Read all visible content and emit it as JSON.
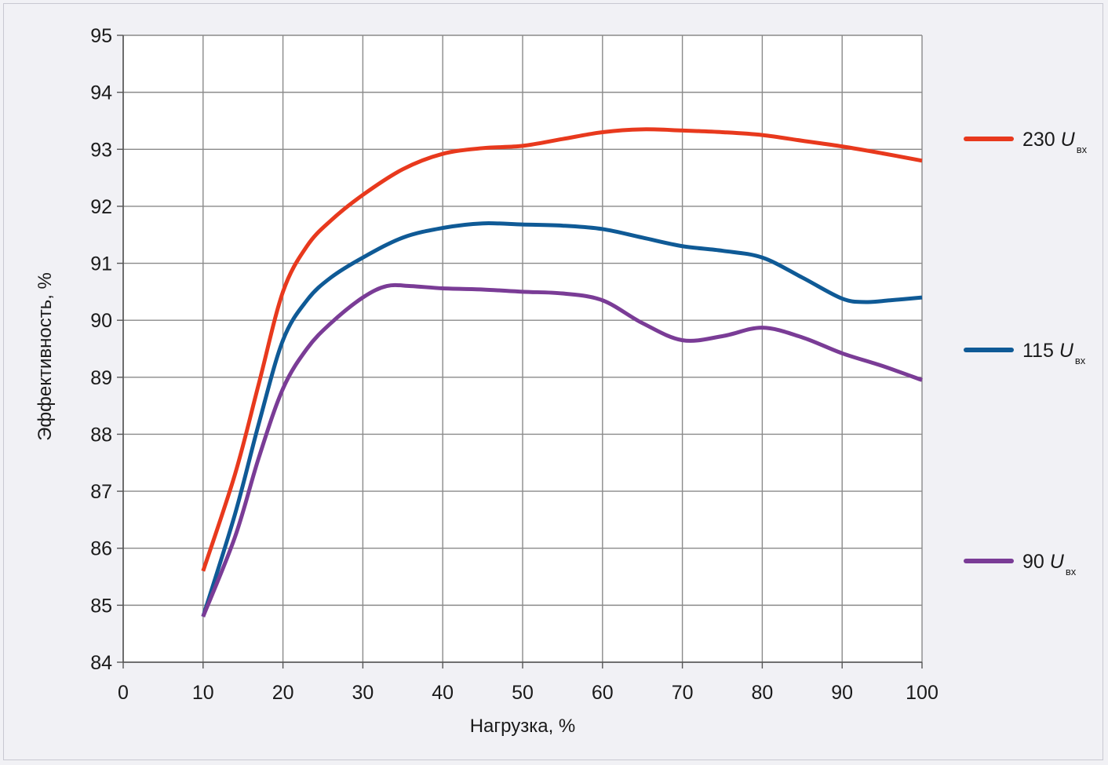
{
  "chart_data": {
    "type": "line",
    "xlabel": "Нагрузка, %",
    "ylabel": "Эффективность, %",
    "xlim": [
      0,
      100
    ],
    "ylim": [
      84,
      95
    ],
    "xticks": [
      "0",
      "10",
      "20",
      "30",
      "40",
      "50",
      "60",
      "70",
      "80",
      "90",
      "100"
    ],
    "yticks": [
      "84",
      "85",
      "86",
      "87",
      "88",
      "89",
      "90",
      "91",
      "92",
      "93",
      "94",
      "95"
    ],
    "grid": true,
    "legend_position": "right",
    "series": [
      {
        "name": "230 U",
        "name_parts": {
          "value": "230",
          "symbol": "U",
          "subscript": "вх"
        },
        "color": "#e8391d",
        "points": [
          [
            10,
            85.6
          ],
          [
            14,
            87.3
          ],
          [
            17,
            88.9
          ],
          [
            20,
            90.5
          ],
          [
            23,
            91.3
          ],
          [
            26,
            91.75
          ],
          [
            30,
            92.2
          ],
          [
            35,
            92.65
          ],
          [
            40,
            92.92
          ],
          [
            45,
            93.02
          ],
          [
            50,
            93.06
          ],
          [
            55,
            93.18
          ],
          [
            60,
            93.3
          ],
          [
            65,
            93.35
          ],
          [
            70,
            93.33
          ],
          [
            75,
            93.3
          ],
          [
            80,
            93.25
          ],
          [
            85,
            93.15
          ],
          [
            90,
            93.05
          ],
          [
            95,
            92.93
          ],
          [
            100,
            92.8
          ]
        ]
      },
      {
        "name": "115 U",
        "name_parts": {
          "value": "115",
          "symbol": "U",
          "subscript": "вх"
        },
        "color": "#0f5a96",
        "points": [
          [
            10,
            84.8
          ],
          [
            14,
            86.6
          ],
          [
            17,
            88.2
          ],
          [
            20,
            89.65
          ],
          [
            23,
            90.35
          ],
          [
            26,
            90.75
          ],
          [
            30,
            91.1
          ],
          [
            35,
            91.45
          ],
          [
            40,
            91.62
          ],
          [
            45,
            91.7
          ],
          [
            50,
            91.68
          ],
          [
            55,
            91.66
          ],
          [
            60,
            91.6
          ],
          [
            65,
            91.45
          ],
          [
            70,
            91.3
          ],
          [
            75,
            91.22
          ],
          [
            80,
            91.1
          ],
          [
            85,
            90.75
          ],
          [
            90,
            90.38
          ],
          [
            93,
            90.32
          ],
          [
            96,
            90.35
          ],
          [
            100,
            90.4
          ]
        ]
      },
      {
        "name": "90 U",
        "name_parts": {
          "value": "90",
          "symbol": "U",
          "subscript": "вх"
        },
        "color": "#7a3c96",
        "points": [
          [
            10,
            84.8
          ],
          [
            14,
            86.2
          ],
          [
            17,
            87.6
          ],
          [
            20,
            88.8
          ],
          [
            23,
            89.5
          ],
          [
            26,
            89.95
          ],
          [
            30,
            90.4
          ],
          [
            33,
            90.6
          ],
          [
            36,
            90.6
          ],
          [
            40,
            90.56
          ],
          [
            45,
            90.54
          ],
          [
            50,
            90.5
          ],
          [
            55,
            90.47
          ],
          [
            60,
            90.35
          ],
          [
            65,
            89.95
          ],
          [
            70,
            89.65
          ],
          [
            75,
            89.72
          ],
          [
            80,
            89.87
          ],
          [
            85,
            89.7
          ],
          [
            90,
            89.42
          ],
          [
            95,
            89.2
          ],
          [
            100,
            88.95
          ]
        ]
      }
    ]
  }
}
